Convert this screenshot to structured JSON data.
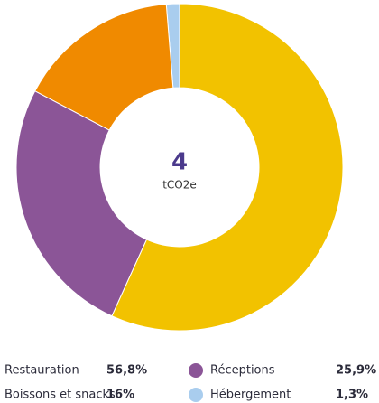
{
  "chart_data": {
    "type": "donut",
    "total": 4,
    "unit": "tCO2e",
    "categories": [
      "Restauration",
      "Réceptions",
      "Boissons et snacks",
      "Hébergement"
    ],
    "values": [
      56.8,
      25.9,
      16,
      1.3
    ],
    "value_labels": [
      "56,8%",
      "25,9%",
      "16%",
      "1,3%"
    ],
    "colors": [
      "#f2c200",
      "#8b5597",
      "#f08a00",
      "#a9cdee"
    ]
  }
}
